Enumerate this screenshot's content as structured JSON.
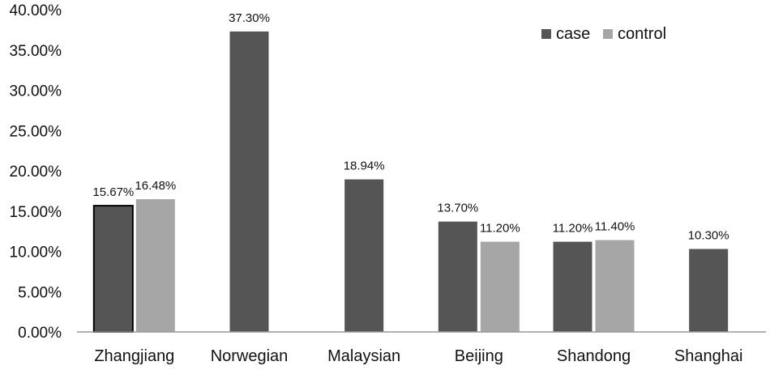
{
  "chart_data": {
    "type": "bar",
    "categories": [
      "Zhangjiang",
      "Norwegian",
      "Malaysian",
      "Beijing",
      "Shandong",
      "Shanghai"
    ],
    "series": [
      {
        "name": "case",
        "color": "#555555",
        "values": [
          15.67,
          37.3,
          18.94,
          13.7,
          11.2,
          10.3
        ],
        "labels": [
          "15.67%",
          "37.30%",
          "18.94%",
          "13.70%",
          "11.20%",
          "10.30%"
        ]
      },
      {
        "name": "control",
        "color": "#a6a6a6",
        "values": [
          16.48,
          null,
          null,
          11.2,
          11.4,
          null
        ],
        "labels": [
          "16.48%",
          "",
          "",
          "11.20%",
          "11.40%",
          ""
        ]
      }
    ],
    "ylim": [
      0,
      40
    ],
    "yticks": [
      0,
      5,
      10,
      15,
      20,
      25,
      30,
      35,
      40
    ],
    "ytick_labels": [
      "0.00%",
      "5.00%",
      "10.00%",
      "15.00%",
      "20.00%",
      "25.00%",
      "30.00%",
      "35.00%",
      "40.00%"
    ],
    "title": "",
    "xlabel": "",
    "ylabel": "",
    "legend_position": "top-right",
    "grid": false,
    "highlighted_bar": {
      "series": "case",
      "category": "Zhangjiang"
    }
  }
}
